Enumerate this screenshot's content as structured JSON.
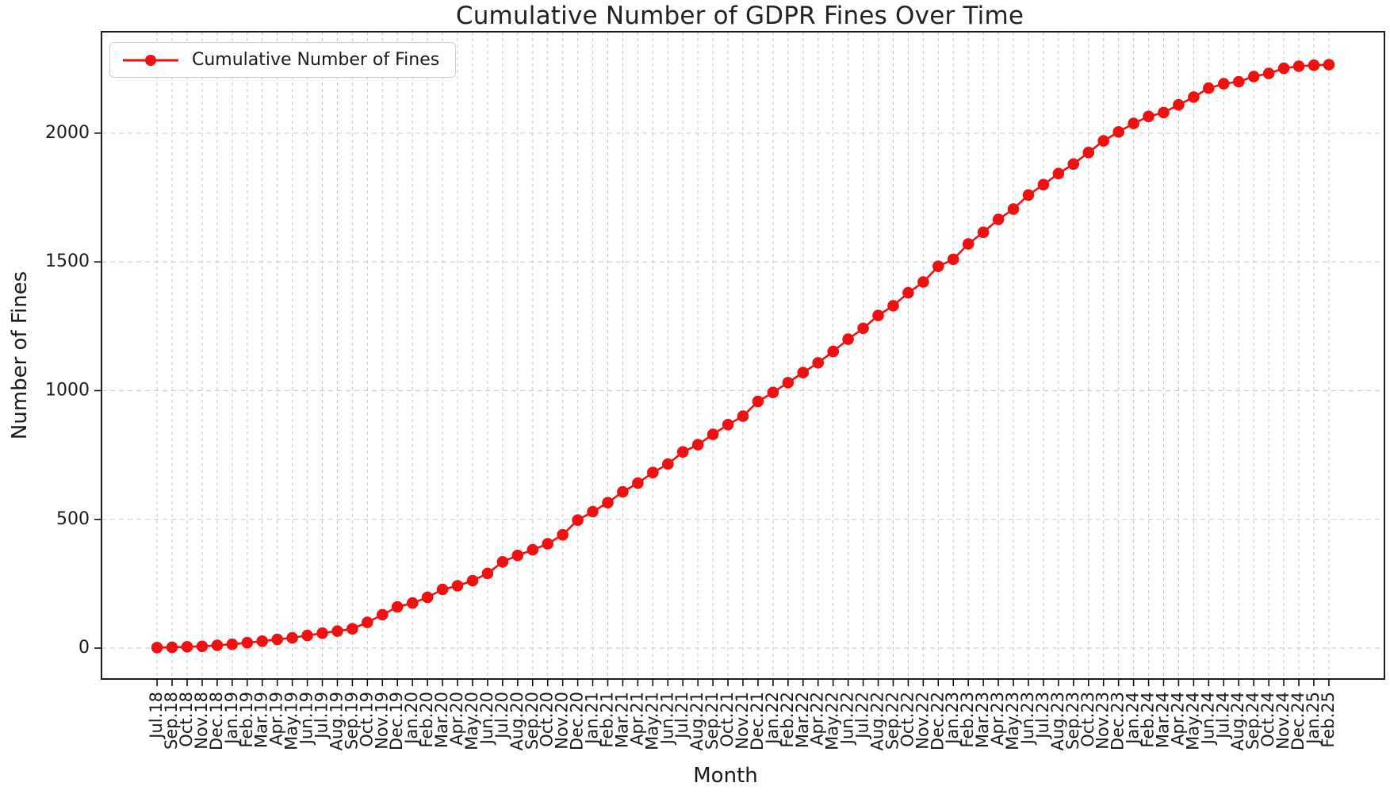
{
  "figure": {
    "title": "Cumulative Number of GDPR Fines Over Time",
    "background_color": "#ffffff",
    "text_color": "#1a1a1a"
  },
  "chart_data": {
    "type": "line",
    "title": "Cumulative Number of GDPR Fines Over Time",
    "xlabel": "Month",
    "ylabel": "Number of Fines",
    "grid": true,
    "grid_style": "dashed",
    "grid_color": "#cbcbcb",
    "line_color": "#ee1111",
    "marker": "circle",
    "legend_position": "upper-left",
    "legend_label": "Cumulative Number of Fines",
    "yticks": [
      0,
      500,
      1000,
      1500,
      2000
    ],
    "ylim": [
      -120,
      2394
    ],
    "xlim": [
      -3.7,
      81.7
    ],
    "categories": [
      "Jul.18",
      "Sep.18",
      "Oct.18",
      "Nov.18",
      "Dec.18",
      "Jan.19",
      "Feb.19",
      "Mar.19",
      "Apr.19",
      "May.19",
      "Jun.19",
      "Jul.19",
      "Aug.19",
      "Sep.19",
      "Oct.19",
      "Nov.19",
      "Dec.19",
      "Jan.20",
      "Feb.20",
      "Mar.20",
      "Apr.20",
      "May.20",
      "Jun.20",
      "Jul.20",
      "Aug.20",
      "Sep.20",
      "Oct.20",
      "Nov.20",
      "Dec.20",
      "Jan.21",
      "Feb.21",
      "Mar.21",
      "Apr.21",
      "May.21",
      "Jun.21",
      "Jul.21",
      "Aug.21",
      "Sep.21",
      "Oct.21",
      "Nov.21",
      "Dec.21",
      "Jan.22",
      "Feb.22",
      "Mar.22",
      "Apr.22",
      "May.22",
      "Jun.22",
      "Jul.22",
      "Aug.22",
      "Sep.22",
      "Oct.22",
      "Nov.22",
      "Dec.22",
      "Jan.23",
      "Feb.23",
      "Mar.23",
      "Apr.23",
      "May.23",
      "Jun.23",
      "Jul.23",
      "Aug.23",
      "Sep.23",
      "Oct.23",
      "Nov.23",
      "Dec.23",
      "Jan.24",
      "Feb.24",
      "Mar.24",
      "Apr.24",
      "May.24",
      "Jun.24",
      "Jul.24",
      "Aug.24",
      "Sep.24",
      "Oct.24",
      "Nov.24",
      "Dec.24",
      "Jan.25",
      "Feb.25"
    ],
    "series": [
      {
        "name": "Cumulative Number of Fines",
        "color": "#ee1111",
        "values": [
          2,
          3,
          5,
          7,
          11,
          15,
          21,
          27,
          34,
          40,
          49,
          58,
          66,
          75,
          100,
          130,
          160,
          175,
          197,
          228,
          242,
          262,
          290,
          335,
          360,
          382,
          405,
          440,
          497,
          530,
          565,
          607,
          641,
          682,
          715,
          762,
          790,
          830,
          868,
          901,
          958,
          993,
          1031,
          1070,
          1108,
          1152,
          1200,
          1242,
          1292,
          1330,
          1380,
          1422,
          1483,
          1510,
          1570,
          1615,
          1665,
          1705,
          1760,
          1800,
          1843,
          1880,
          1925,
          1970,
          2005,
          2038,
          2065,
          2080,
          2110,
          2140,
          2175,
          2192,
          2200,
          2220,
          2232,
          2252,
          2260,
          2264,
          2266
        ]
      }
    ]
  }
}
